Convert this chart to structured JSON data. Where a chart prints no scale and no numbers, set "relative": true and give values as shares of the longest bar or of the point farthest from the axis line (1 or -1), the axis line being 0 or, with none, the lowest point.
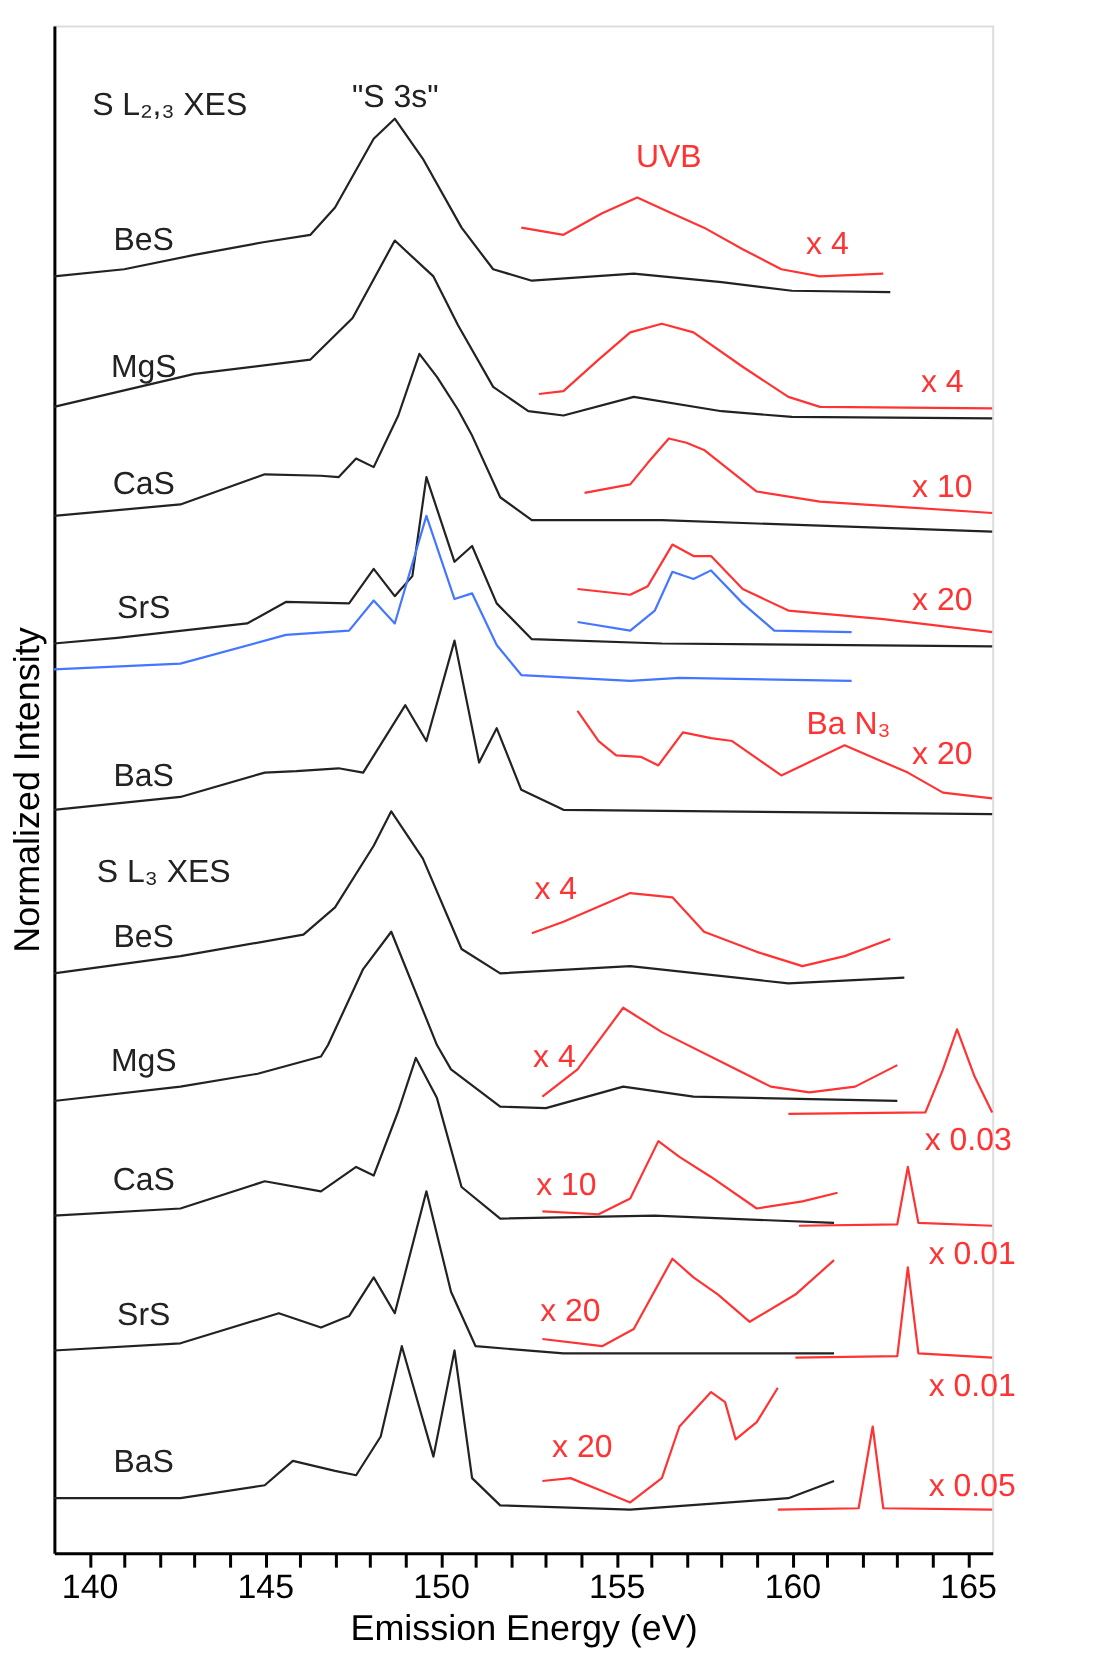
{
  "chart_data": {
    "type": "line",
    "relative": true,
    "xlabel": "Emission Energy (eV)",
    "ylabel": "Normalized Intensity",
    "xlim": [
      139,
      165.7
    ],
    "xticks": [
      140,
      {
        "value": 141,
        "label": null
      },
      {
        "value": 142,
        "label": null
      },
      {
        "value": 143,
        "label": null
      },
      {
        "value": 144,
        "label": null
      },
      145,
      {
        "value": 146,
        "label": null
      },
      {
        "value": 147,
        "label": null
      },
      {
        "value": 148,
        "label": null
      },
      {
        "value": 149,
        "label": null
      },
      150,
      {
        "value": 151,
        "label": null
      },
      {
        "value": 152,
        "label": null
      },
      {
        "value": 153,
        "label": null
      },
      {
        "value": 154,
        "label": null
      },
      155,
      {
        "value": 156,
        "label": null
      },
      {
        "value": 157,
        "label": null
      },
      {
        "value": 158,
        "label": null
      },
      {
        "value": 159,
        "label": null
      },
      160,
      {
        "value": 161,
        "label": null
      },
      {
        "value": 162,
        "label": null
      },
      {
        "value": 163,
        "label": null
      },
      {
        "value": 164,
        "label": null
      },
      165
    ],
    "grid": false,
    "marker": "none",
    "line_style": "solid",
    "series": [
      {
        "name": "BeS",
        "color": "#222222",
        "x": [
          139,
          141,
          143,
          145,
          146.3,
          147,
          148.1,
          148.7,
          149.5,
          150.6,
          151.5,
          152.6,
          155.5,
          158,
          160,
          162.8
        ],
        "values": [
          0.89,
          0.895,
          0.905,
          0.914,
          0.919,
          0.938,
          0.986,
          1.0,
          0.972,
          0.924,
          0.895,
          0.887,
          0.892,
          0.886,
          0.88,
          0.879
        ]
      },
      {
        "name": "x 4",
        "color": "#ff3333",
        "x": [
          152.3,
          153.5,
          154.6,
          155.6,
          156.5,
          157.5,
          158.6,
          159.7,
          160.8,
          162.6
        ],
        "values": [
          0.924,
          0.919,
          0.934,
          0.945,
          0.935,
          0.924,
          0.909,
          0.895,
          0.89,
          0.892
        ]
      },
      {
        "name": "MgS",
        "color": "#222222",
        "x": [
          139,
          143,
          146.3,
          147.5,
          148.7,
          149.8,
          150.5,
          151.5,
          152.5,
          153.5,
          155.5,
          158,
          160,
          165.7
        ],
        "values": [
          0.799,
          0.822,
          0.832,
          0.861,
          0.915,
          0.89,
          0.856,
          0.813,
          0.796,
          0.793,
          0.806,
          0.796,
          0.792,
          0.791
        ]
      },
      {
        "name": "x 4",
        "color": "#ff3333",
        "x": [
          152.8,
          153.5,
          154.5,
          155.4,
          156.3,
          157.2,
          158.6,
          159.9,
          160.8,
          165.7
        ],
        "values": [
          0.808,
          0.81,
          0.832,
          0.851,
          0.857,
          0.851,
          0.827,
          0.806,
          0.799,
          0.798
        ]
      },
      {
        "name": "CaS",
        "color": "#222222",
        "x": [
          139,
          142.6,
          145,
          146.6,
          147.1,
          147.6,
          148.1,
          148.8,
          149.4,
          149.9,
          150.5,
          150.9,
          151.7,
          152.6,
          156.3,
          165.7
        ],
        "values": [
          0.723,
          0.731,
          0.752,
          0.751,
          0.75,
          0.763,
          0.757,
          0.793,
          0.836,
          0.82,
          0.797,
          0.779,
          0.736,
          0.72,
          0.72,
          0.712
        ]
      },
      {
        "name": "x 10",
        "color": "#ff3333",
        "x": [
          154.1,
          155.4,
          155.9,
          156.5,
          157,
          157.5,
          159,
          160.8,
          165.7
        ],
        "values": [
          0.739,
          0.745,
          0.76,
          0.777,
          0.774,
          0.769,
          0.74,
          0.733,
          0.725
        ]
      },
      {
        "name": "SrS",
        "color": "#222222",
        "x": [
          139,
          140.8,
          144.5,
          145.6,
          147.4,
          148.1,
          148.7,
          149.2,
          149.6,
          150.4,
          150.9,
          151.6,
          152.6,
          156.3,
          165.7
        ],
        "values": [
          0.634,
          0.638,
          0.648,
          0.663,
          0.662,
          0.686,
          0.667,
          0.681,
          0.75,
          0.691,
          0.702,
          0.662,
          0.637,
          0.634,
          0.632
        ]
      },
      {
        "name": "x 20",
        "color": "#ff3333",
        "x": [
          153.9,
          155.4,
          155.9,
          156.6,
          157.2,
          157.7,
          158.6,
          159.9,
          162.6,
          165.7
        ],
        "values": [
          0.672,
          0.668,
          0.674,
          0.703,
          0.695,
          0.695,
          0.672,
          0.657,
          0.651,
          0.642
        ]
      },
      {
        "color": "#4477ff",
        "x": [
          153.9,
          155.4,
          156.1,
          156.6,
          157.2,
          157.7,
          158.6,
          159.5,
          161.7
        ],
        "values": [
          0.649,
          0.643,
          0.657,
          0.684,
          0.679,
          0.685,
          0.662,
          0.643,
          0.642
        ]
      },
      {
        "color": "#4477ff",
        "x": [
          139,
          142.6,
          145.6,
          147.4,
          148.1,
          148.7,
          149.6,
          150.4,
          150.9,
          151.6,
          152.3,
          155.4,
          156.8,
          161.7
        ],
        "values": [
          0.616,
          0.62,
          0.64,
          0.643,
          0.664,
          0.648,
          0.723,
          0.665,
          0.669,
          0.633,
          0.612,
          0.608,
          0.61,
          0.608
        ]
      },
      {
        "name": "BaS",
        "color": "#222222",
        "x": [
          139,
          142.6,
          145,
          145.9,
          147.1,
          147.8,
          149,
          149.6,
          150.4,
          151.1,
          151.6,
          152.3,
          153.5,
          165.7
        ],
        "values": [
          0.518,
          0.527,
          0.544,
          0.545,
          0.547,
          0.544,
          0.591,
          0.566,
          0.636,
          0.551,
          0.575,
          0.532,
          0.518,
          0.515
        ]
      },
      {
        "name": "x 20",
        "color": "#ff3333",
        "x": [
          153.9,
          154.5,
          155,
          155.7,
          156.2,
          156.9,
          157.7,
          158.3,
          159.7,
          161.5,
          163.3,
          164.3,
          165.7
        ],
        "values": [
          0.587,
          0.566,
          0.556,
          0.555,
          0.549,
          0.572,
          0.568,
          0.566,
          0.542,
          0.563,
          0.544,
          0.53,
          0.526
        ]
      },
      {
        "name": "BeS",
        "color": "#222222",
        "x": [
          139,
          142.6,
          146.1,
          147,
          148.1,
          148.6,
          149.5,
          150.6,
          151.7,
          155.4,
          159.9,
          163.2
        ],
        "values": [
          0.404,
          0.416,
          0.431,
          0.45,
          0.493,
          0.517,
          0.484,
          0.421,
          0.404,
          0.409,
          0.397,
          0.401
        ]
      },
      {
        "name": "x 4",
        "color": "#ff3333",
        "x": [
          152.6,
          153.5,
          155.4,
          156.6,
          157.5,
          159,
          160.3,
          161.5,
          162.8
        ],
        "values": [
          0.432,
          0.44,
          0.46,
          0.457,
          0.433,
          0.419,
          0.409,
          0.416,
          0.428
        ]
      },
      {
        "name": "MgS",
        "color": "#222222",
        "x": [
          139,
          142.6,
          144.8,
          146.6,
          146.8,
          147.8,
          148.6,
          149.9,
          150.3,
          151.7,
          153,
          155.2,
          157.2,
          163
        ],
        "values": [
          0.315,
          0.325,
          0.334,
          0.346,
          0.354,
          0.407,
          0.433,
          0.354,
          0.337,
          0.311,
          0.31,
          0.325,
          0.318,
          0.315
        ]
      },
      {
        "name": "x 4",
        "color": "#ff3333",
        "x": [
          152.9,
          153.9,
          155.2,
          156.3,
          158.1,
          159.4,
          160.5,
          161.8,
          163
        ],
        "values": [
          0.318,
          0.337,
          0.38,
          0.363,
          0.341,
          0.325,
          0.321,
          0.325,
          0.34
        ]
      },
      {
        "name": "x 0.03",
        "color": "#ff3333",
        "x": [
          159.9,
          163.8,
          164.3,
          164.7,
          165.2,
          165.7
        ],
        "values": [
          0.306,
          0.307,
          0.337,
          0.365,
          0.332,
          0.307
        ]
      },
      {
        "name": "CaS",
        "color": "#222222",
        "x": [
          139,
          142.6,
          145,
          146.6,
          147.6,
          148.1,
          148.8,
          149.3,
          149.9,
          150.6,
          151.7,
          156.1,
          161.2
        ],
        "values": [
          0.235,
          0.24,
          0.259,
          0.252,
          0.269,
          0.263,
          0.308,
          0.345,
          0.317,
          0.255,
          0.233,
          0.235,
          0.23
        ]
      },
      {
        "name": "x 10",
        "color": "#ff3333",
        "x": [
          152.9,
          154.5,
          155.4,
          156.2,
          156.8,
          157.7,
          159,
          160.3,
          161.3
        ],
        "values": [
          0.238,
          0.236,
          0.247,
          0.287,
          0.276,
          0.262,
          0.24,
          0.245,
          0.251
        ]
      },
      {
        "name": "x 0.01",
        "color": "#ff3333",
        "x": [
          160.2,
          163,
          163.3,
          163.6,
          165.7
        ],
        "values": [
          0.228,
          0.229,
          0.269,
          0.23,
          0.228
        ]
      },
      {
        "name": "SrS",
        "color": "#222222",
        "x": [
          139,
          142.6,
          145.4,
          146.6,
          147.4,
          148.1,
          148.7,
          149.6,
          150.3,
          151,
          153.5,
          161.2
        ],
        "values": [
          0.141,
          0.146,
          0.167,
          0.157,
          0.165,
          0.192,
          0.167,
          0.252,
          0.182,
          0.144,
          0.139,
          0.139
        ]
      },
      {
        "name": "x 20",
        "color": "#ff3333",
        "x": [
          152.9,
          154.6,
          155.5,
          156.6,
          157.2,
          157.9,
          158.8,
          160.1,
          161.2
        ],
        "values": [
          0.149,
          0.144,
          0.156,
          0.205,
          0.192,
          0.18,
          0.161,
          0.18,
          0.204
        ]
      },
      {
        "name": "x 0.01",
        "color": "#ff3333",
        "x": [
          160.1,
          163,
          163.3,
          163.6,
          165.7
        ],
        "values": [
          0.136,
          0.137,
          0.199,
          0.139,
          0.136
        ]
      },
      {
        "name": "BaS",
        "color": "#222222",
        "x": [
          139,
          142.6,
          145,
          145.8,
          147,
          147.6,
          148.3,
          148.9,
          149.8,
          150.4,
          150.9,
          151.7,
          155.4,
          159.9,
          161.2
        ],
        "values": [
          0.038,
          0.038,
          0.047,
          0.064,
          0.057,
          0.054,
          0.081,
          0.144,
          0.067,
          0.141,
          0.052,
          0.033,
          0.03,
          0.038,
          0.05
        ]
      },
      {
        "name": "x 20",
        "color": "#ff3333",
        "x": [
          152.9,
          153.7,
          154.6,
          155.4,
          156.3,
          156.8,
          157.7,
          158.1,
          158.4,
          159,
          159.6
        ],
        "values": [
          0.05,
          0.052,
          0.043,
          0.035,
          0.052,
          0.088,
          0.112,
          0.105,
          0.079,
          0.091,
          0.115
        ]
      },
      {
        "name": "x 0.05",
        "color": "#ff3333",
        "x": [
          159.6,
          161.9,
          162.3,
          162.6,
          165.7
        ],
        "values": [
          0.03,
          0.031,
          0.088,
          0.031,
          0.03
        ]
      }
    ],
    "annotations": [
      "S L₂,₃ XES",
      "\"S 3s\"",
      "UVB",
      "Ba N₃",
      "S L₃ XES"
    ]
  }
}
